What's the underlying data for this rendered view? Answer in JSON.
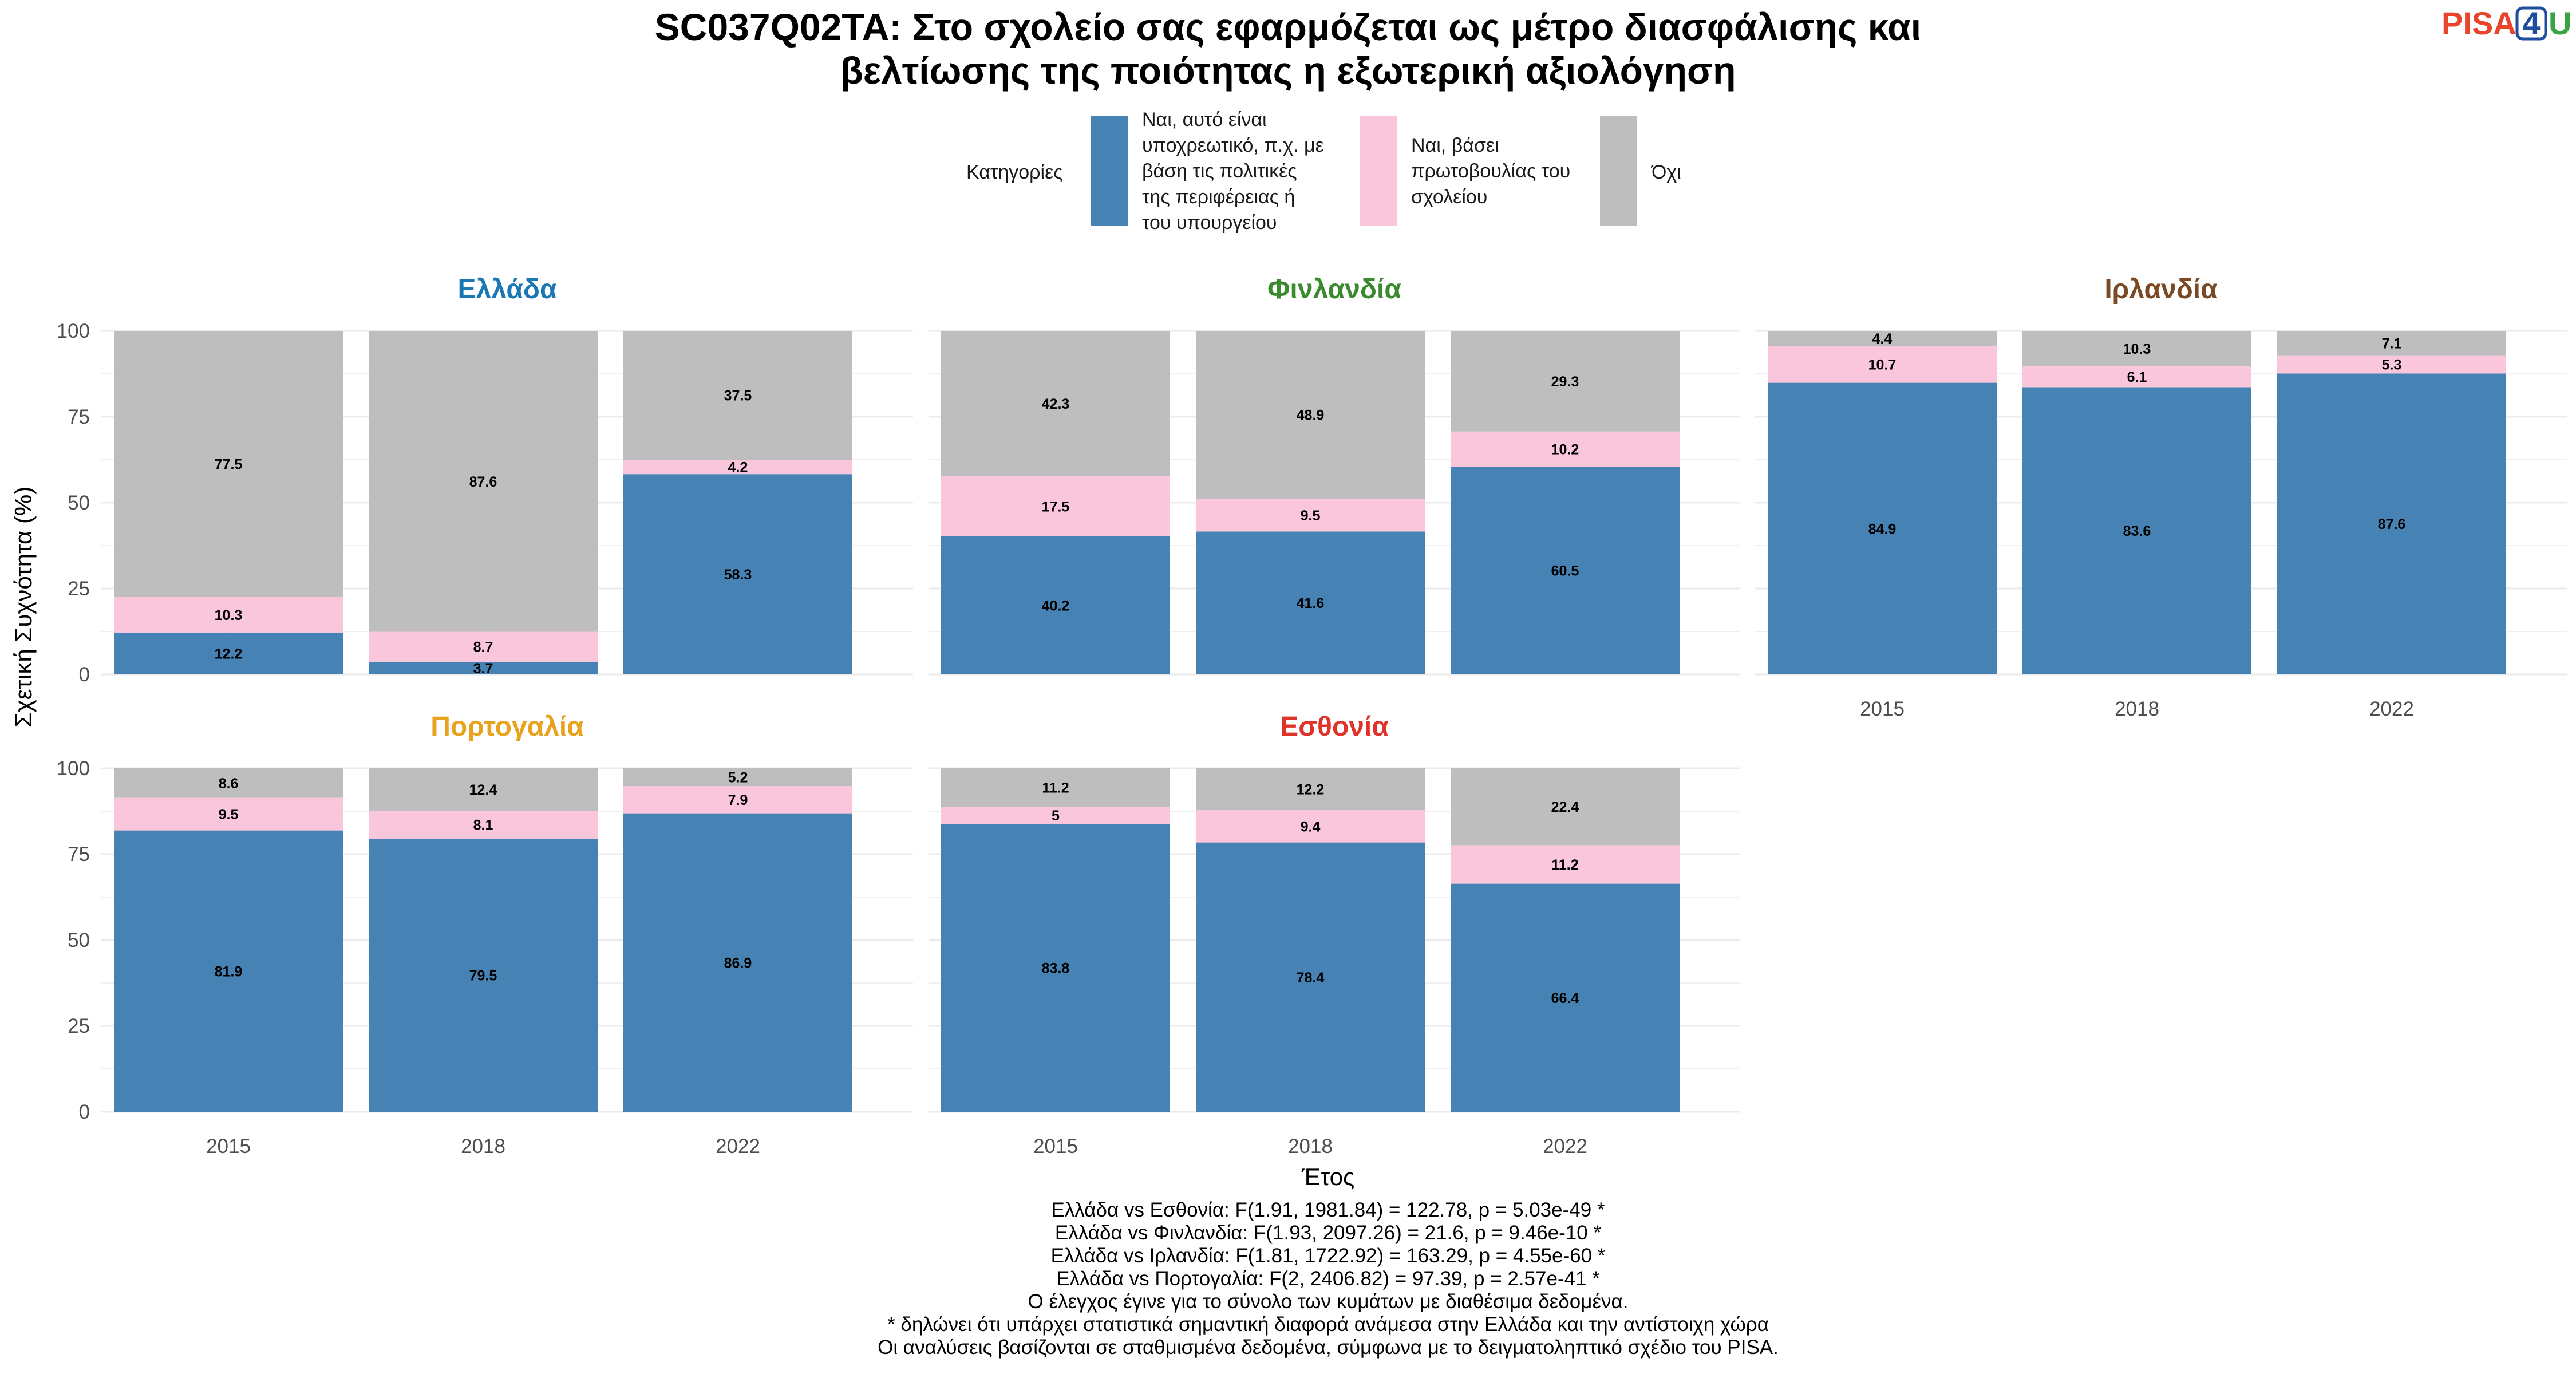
{
  "title_lines": [
    "SC037Q02TA: Στο σχολείο σας εφαρμόζεται ως μέτρο διασφάλισης και",
    "βελτίωσης της ποιότητας η εξωτερική αξιολόγηση"
  ],
  "logo": {
    "pisa": "PISA",
    "four": "4",
    "u": "U",
    "colors": {
      "pisa": "#e8452c",
      "four": "#1f4e9e",
      "u": "#3aa346"
    }
  },
  "legend": {
    "title": "Κατηγορίες",
    "items": [
      {
        "lines": [
          "Ναι, αυτό είναι",
          "υποχρεωτικό, π.χ. με",
          "βάση τις πολιτικές",
          "της περιφέρειας ή",
          "του υπουργείου"
        ],
        "color": "#4682b4"
      },
      {
        "lines": [
          "Ναι, βάσει",
          "πρωτοβουλίας του",
          "σχολείου"
        ],
        "color": "#f9c6dc"
      },
      {
        "lines": [
          "Όχι"
        ],
        "color": "#bebebe"
      }
    ]
  },
  "axes": {
    "ylabel": "Σχετική Συχνότητα (%)",
    "xlabel": "Έτος"
  },
  "notes": [
    "Ελλάδα vs Εσθονία: F(1.91, 1981.84) = 122.78, p = 5.03e-49 *",
    "Ελλάδα vs Φινλανδία: F(1.93, 2097.26) = 21.6, p = 9.46e-10 *",
    "Ελλάδα vs Ιρλανδία: F(1.81, 1722.92) = 163.29, p = 4.55e-60 *",
    "Ελλάδα vs Πορτογαλία: F(2, 2406.82) = 97.39, p = 2.57e-41 *",
    "Ο έλεγχος έγινε για το σύνολο των κυμάτων με διαθέσιμα δεδομένα.",
    "* δηλώνει ότι υπάρχει στατιστικά σημαντική διαφορά ανάμεσα στην Ελλάδα και την αντίστοιχη χώρα",
    "Οι αναλύσεις βασίζονται σε σταθμισμένα δεδομένα, σύμφωνα με το δειγματοληπτικό σχέδιο του PISA."
  ],
  "chart_data": {
    "type": "bar",
    "stacked": true,
    "categories": [
      "2015",
      "2018",
      "2022"
    ],
    "ylim": [
      0,
      100
    ],
    "yticks": [
      0,
      25,
      50,
      75,
      100
    ],
    "grid": true,
    "legend_position": "top",
    "series_colors": [
      "#4682b4",
      "#f9c6dc",
      "#bebebe"
    ],
    "panels": [
      {
        "name": "Ελλάδα",
        "title_color": "#1a78b4",
        "series": [
          {
            "values": [
              12.2,
              3.7,
              58.3
            ]
          },
          {
            "values": [
              10.3,
              8.7,
              4.2
            ]
          },
          {
            "values": [
              77.5,
              87.6,
              37.5
            ]
          }
        ]
      },
      {
        "name": "Φινλανδία",
        "title_color": "#3a8a2e",
        "series": [
          {
            "values": [
              40.2,
              41.6,
              60.5
            ]
          },
          {
            "values": [
              17.5,
              9.5,
              10.2
            ]
          },
          {
            "values": [
              42.3,
              48.9,
              29.3
            ]
          }
        ]
      },
      {
        "name": "Ιρλανδία",
        "title_color": "#7b4a25",
        "series": [
          {
            "values": [
              84.9,
              83.6,
              87.6
            ]
          },
          {
            "values": [
              10.7,
              6.1,
              5.3
            ]
          },
          {
            "values": [
              4.4,
              10.3,
              7.1
            ]
          }
        ]
      },
      {
        "name": "Πορτογαλία",
        "title_color": "#e8a21c",
        "series": [
          {
            "values": [
              81.9,
              79.5,
              86.9
            ]
          },
          {
            "values": [
              9.5,
              8.1,
              7.9
            ]
          },
          {
            "values": [
              8.6,
              12.4,
              5.2
            ]
          }
        ]
      },
      {
        "name": "Εσθονία",
        "title_color": "#e0342a",
        "series": [
          {
            "values": [
              83.8,
              78.4,
              66.4
            ]
          },
          {
            "values": [
              5,
              9.4,
              11.2
            ]
          },
          {
            "values": [
              11.2,
              12.2,
              22.4
            ]
          }
        ]
      }
    ]
  }
}
